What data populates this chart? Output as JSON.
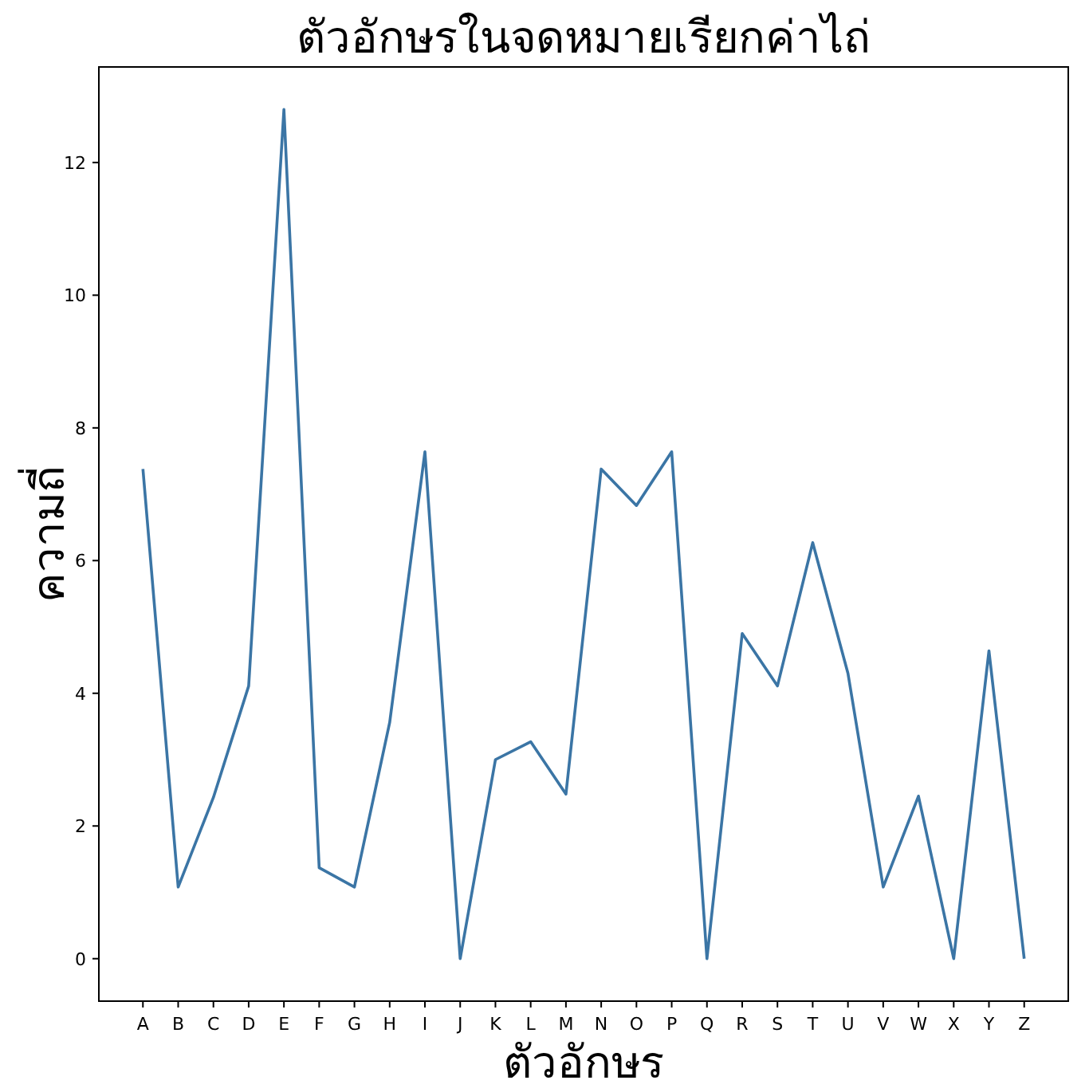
{
  "chart_data": {
    "type": "line",
    "title": "ตัวอักษรในจดหมายเรียกค่าไถ่",
    "xlabel": "ตัวอักษร",
    "ylabel": "ความถี่",
    "categories": [
      "A",
      "B",
      "C",
      "D",
      "E",
      "F",
      "G",
      "H",
      "I",
      "J",
      "K",
      "L",
      "M",
      "N",
      "O",
      "P",
      "Q",
      "R",
      "S",
      "T",
      "U",
      "V",
      "W",
      "X",
      "Y",
      "Z"
    ],
    "series": [
      {
        "color": "#3b75a5",
        "values": [
          7.38,
          1.08,
          2.43,
          4.11,
          12.8,
          1.37,
          1.08,
          3.56,
          7.64,
          0,
          3.0,
          3.27,
          2.48,
          7.38,
          6.83,
          7.64,
          0,
          4.9,
          4.11,
          6.27,
          4.3,
          1.08,
          2.45,
          0,
          4.64,
          0
        ]
      }
    ],
    "ylim": [
      -0.64,
      13.44
    ],
    "yticks": [
      0,
      2,
      4,
      6,
      8,
      10,
      12
    ],
    "grid": false,
    "marker": "none",
    "line_style": "solid"
  }
}
